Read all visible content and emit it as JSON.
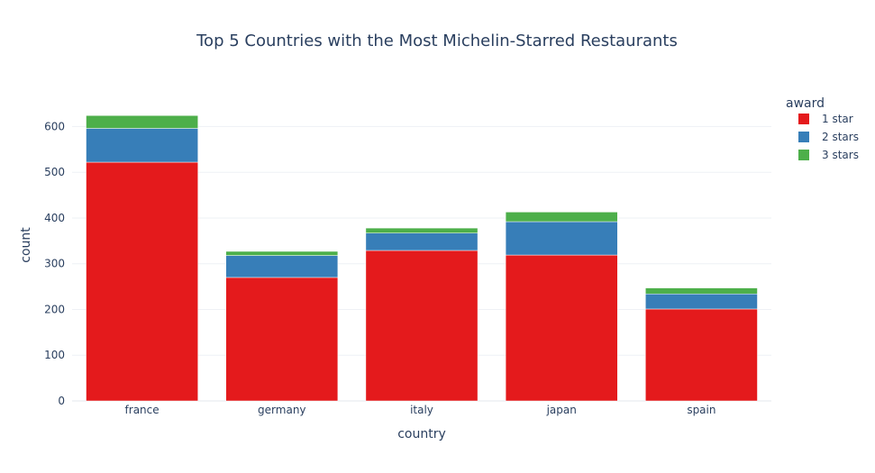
{
  "chart_data": {
    "type": "bar",
    "stacked": true,
    "title": "Top 5 Countries with the Most Michelin-Starred Restaurants",
    "xlabel": "country",
    "ylabel": "count",
    "categories": [
      "france",
      "germany",
      "italy",
      "japan",
      "spain"
    ],
    "series": [
      {
        "name": "1 star",
        "color": "#e41a1c",
        "values": [
          522,
          270,
          329,
          319,
          201
        ]
      },
      {
        "name": "2 stars",
        "color": "#377eb8",
        "values": [
          74,
          48,
          38,
          73,
          33
        ]
      },
      {
        "name": "3 stars",
        "color": "#4daf4a",
        "values": [
          28,
          9,
          11,
          21,
          13
        ]
      }
    ],
    "ylim": [
      0,
      656
    ],
    "yticks": [
      0,
      100,
      200,
      300,
      400,
      500,
      600
    ],
    "legend": {
      "title": "award",
      "position": "top-right"
    },
    "grid": true
  }
}
